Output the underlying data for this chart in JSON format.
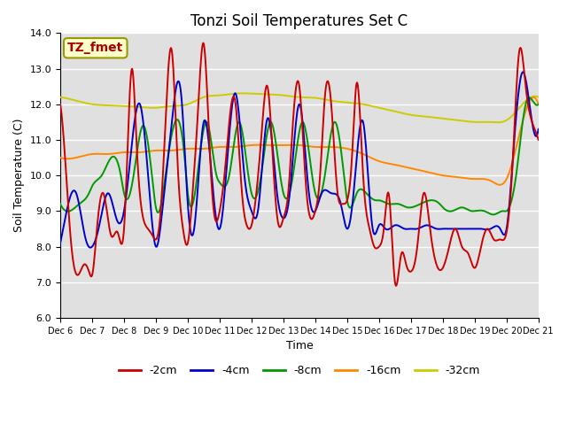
{
  "title": "Tonzi Soil Temperatures Set C",
  "xlabel": "Time",
  "ylabel": "Soil Temperature (C)",
  "ylim": [
    6.0,
    14.0
  ],
  "yticks": [
    6.0,
    7.0,
    8.0,
    9.0,
    10.0,
    11.0,
    12.0,
    13.0,
    14.0
  ],
  "xtick_labels": [
    "Dec 6",
    "Dec 7",
    "Dec 8",
    "Dec 9",
    "Dec 10",
    "Dec 11",
    "Dec 12",
    "Dec 13",
    "Dec 14",
    "Dec 15",
    "Dec 16",
    "Dec 17",
    "Dec 18",
    "Dec 19",
    "Dec 20",
    "Dec 21"
  ],
  "legend_labels": [
    "-2cm",
    "-4cm",
    "-8cm",
    "-16cm",
    "-32cm"
  ],
  "legend_colors": [
    "#cc0000",
    "#0000cc",
    "#009900",
    "#ff8800",
    "#cccc00"
  ],
  "annotation_text": "TZ_fmet",
  "annotation_color": "#aa0000",
  "annotation_bg": "#ffffcc",
  "bg_color": "#e0e0e0",
  "grid_color": "#ffffff",
  "title_fontsize": 12,
  "axis_fontsize": 9,
  "tick_fontsize": 8
}
